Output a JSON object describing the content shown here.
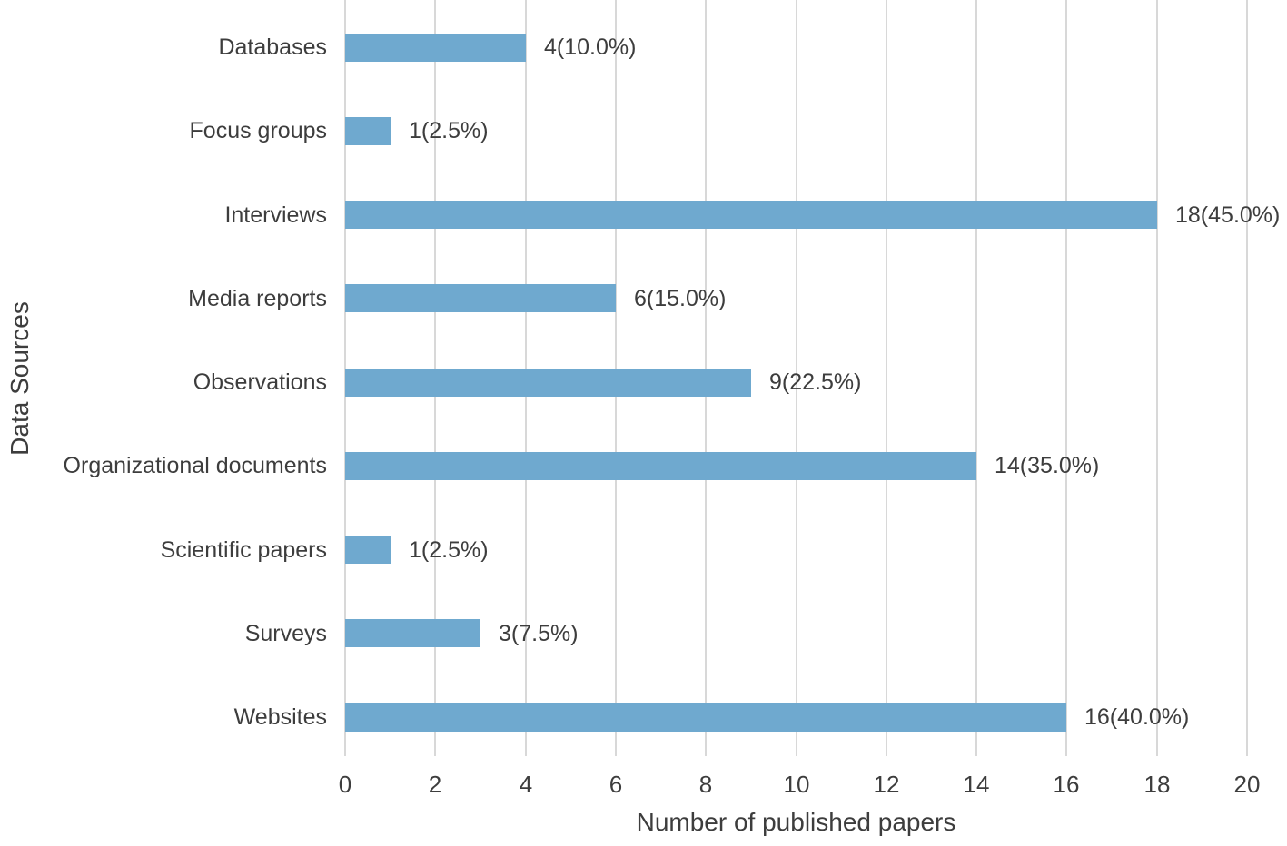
{
  "chart_data": {
    "type": "bar",
    "orientation": "horizontal",
    "xlabel": "Number of published papers",
    "ylabel": "Data Sources",
    "categories": [
      "Databases",
      "Focus groups",
      "Interviews",
      "Media reports",
      "Observations",
      "Organizational documents",
      "Scientific papers",
      "Surveys",
      "Websites"
    ],
    "values": [
      4,
      1,
      18,
      6,
      9,
      14,
      1,
      3,
      16
    ],
    "value_labels": [
      "4(10.0%)",
      "1(2.5%)",
      "18(45.0%)",
      "6(15.0%)",
      "9(22.5%)",
      "14(35.0%)",
      "1(2.5%)",
      "3(7.5%)",
      "16(40.0%)"
    ],
    "xlim": [
      0,
      20
    ],
    "xticks": [
      0,
      2,
      4,
      6,
      8,
      10,
      12,
      14,
      16,
      18,
      20
    ],
    "grid": "vertical",
    "legend": "none",
    "bar_color": "#6FA9CF",
    "gridline_color": "#D8D8D8",
    "text_color": "#3D3D3D",
    "background_color": "#FFFFFF"
  }
}
